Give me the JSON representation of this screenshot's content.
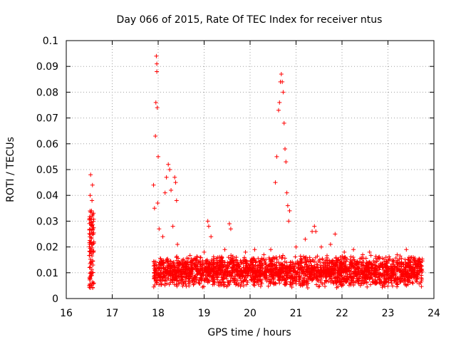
{
  "chart_data": {
    "type": "scatter",
    "title": "Day 066 of 2015, Rate Of TEC Index for receiver ntus",
    "xlabel": "GPS time / hours",
    "ylabel": "ROTI / TECUs",
    "xlim": [
      16,
      24
    ],
    "ylim": [
      0,
      0.1
    ],
    "x_ticks": [
      16,
      17,
      18,
      19,
      20,
      21,
      22,
      23,
      24
    ],
    "y_ticks": [
      0,
      0.01,
      0.02,
      0.03,
      0.04,
      0.05,
      0.06,
      0.07,
      0.08,
      0.09,
      0.1
    ],
    "grid": true,
    "marker": "+",
    "color": "#ff0000",
    "series": [
      {
        "name": "ROTI",
        "points": [
          [
            16.5,
            0.005
          ],
          [
            16.51,
            0.012
          ],
          [
            16.52,
            0.031
          ],
          [
            16.53,
            0.048
          ],
          [
            16.54,
            0.022
          ],
          [
            16.55,
            0.009
          ],
          [
            16.56,
            0.038
          ],
          [
            16.57,
            0.044
          ],
          [
            16.58,
            0.027
          ],
          [
            16.59,
            0.018
          ],
          [
            16.6,
            0.006
          ],
          [
            16.52,
            0.04
          ],
          [
            16.55,
            0.034
          ],
          [
            16.57,
            0.025
          ],
          [
            16.58,
            0.013
          ],
          [
            17.9,
            0.044
          ],
          [
            17.92,
            0.035
          ],
          [
            17.94,
            0.063
          ],
          [
            17.95,
            0.076
          ],
          [
            17.96,
            0.094
          ],
          [
            17.97,
            0.091
          ],
          [
            17.97,
            0.088
          ],
          [
            17.98,
            0.074
          ],
          [
            17.99,
            0.037
          ],
          [
            18.0,
            0.055
          ],
          [
            18.02,
            0.027
          ],
          [
            18.1,
            0.024
          ],
          [
            18.15,
            0.041
          ],
          [
            18.18,
            0.047
          ],
          [
            18.22,
            0.052
          ],
          [
            18.25,
            0.05
          ],
          [
            18.28,
            0.042
          ],
          [
            18.32,
            0.028
          ],
          [
            18.36,
            0.047
          ],
          [
            18.38,
            0.045
          ],
          [
            18.4,
            0.038
          ],
          [
            18.42,
            0.021
          ],
          [
            18.55,
            0.012
          ],
          [
            18.7,
            0.014
          ],
          [
            18.85,
            0.016
          ],
          [
            19.0,
            0.018
          ],
          [
            19.08,
            0.03
          ],
          [
            19.1,
            0.028
          ],
          [
            19.15,
            0.024
          ],
          [
            19.3,
            0.016
          ],
          [
            19.45,
            0.019
          ],
          [
            19.55,
            0.029
          ],
          [
            19.58,
            0.027
          ],
          [
            19.7,
            0.016
          ],
          [
            19.9,
            0.018
          ],
          [
            20.1,
            0.019
          ],
          [
            20.3,
            0.017
          ],
          [
            20.45,
            0.019
          ],
          [
            20.55,
            0.045
          ],
          [
            20.58,
            0.055
          ],
          [
            20.62,
            0.073
          ],
          [
            20.64,
            0.076
          ],
          [
            20.66,
            0.084
          ],
          [
            20.68,
            0.087
          ],
          [
            20.7,
            0.084
          ],
          [
            20.72,
            0.08
          ],
          [
            20.74,
            0.068
          ],
          [
            20.76,
            0.058
          ],
          [
            20.78,
            0.053
          ],
          [
            20.8,
            0.041
          ],
          [
            20.82,
            0.036
          ],
          [
            20.84,
            0.03
          ],
          [
            20.86,
            0.034
          ],
          [
            21.0,
            0.02
          ],
          [
            21.2,
            0.023
          ],
          [
            21.35,
            0.026
          ],
          [
            21.4,
            0.028
          ],
          [
            21.43,
            0.026
          ],
          [
            21.55,
            0.02
          ],
          [
            21.75,
            0.021
          ],
          [
            21.85,
            0.025
          ],
          [
            22.05,
            0.018
          ],
          [
            22.25,
            0.019
          ],
          [
            22.45,
            0.017
          ],
          [
            22.6,
            0.018
          ],
          [
            22.8,
            0.016
          ],
          [
            23.0,
            0.015
          ],
          [
            23.2,
            0.017
          ],
          [
            23.4,
            0.019
          ],
          [
            23.55,
            0.016
          ],
          [
            23.7,
            0.014
          ]
        ],
        "dense_band": {
          "x_range": [
            17.9,
            23.75
          ],
          "y_range": [
            0.004,
            0.017
          ],
          "description": "continuous cluster of points"
        }
      }
    ]
  }
}
